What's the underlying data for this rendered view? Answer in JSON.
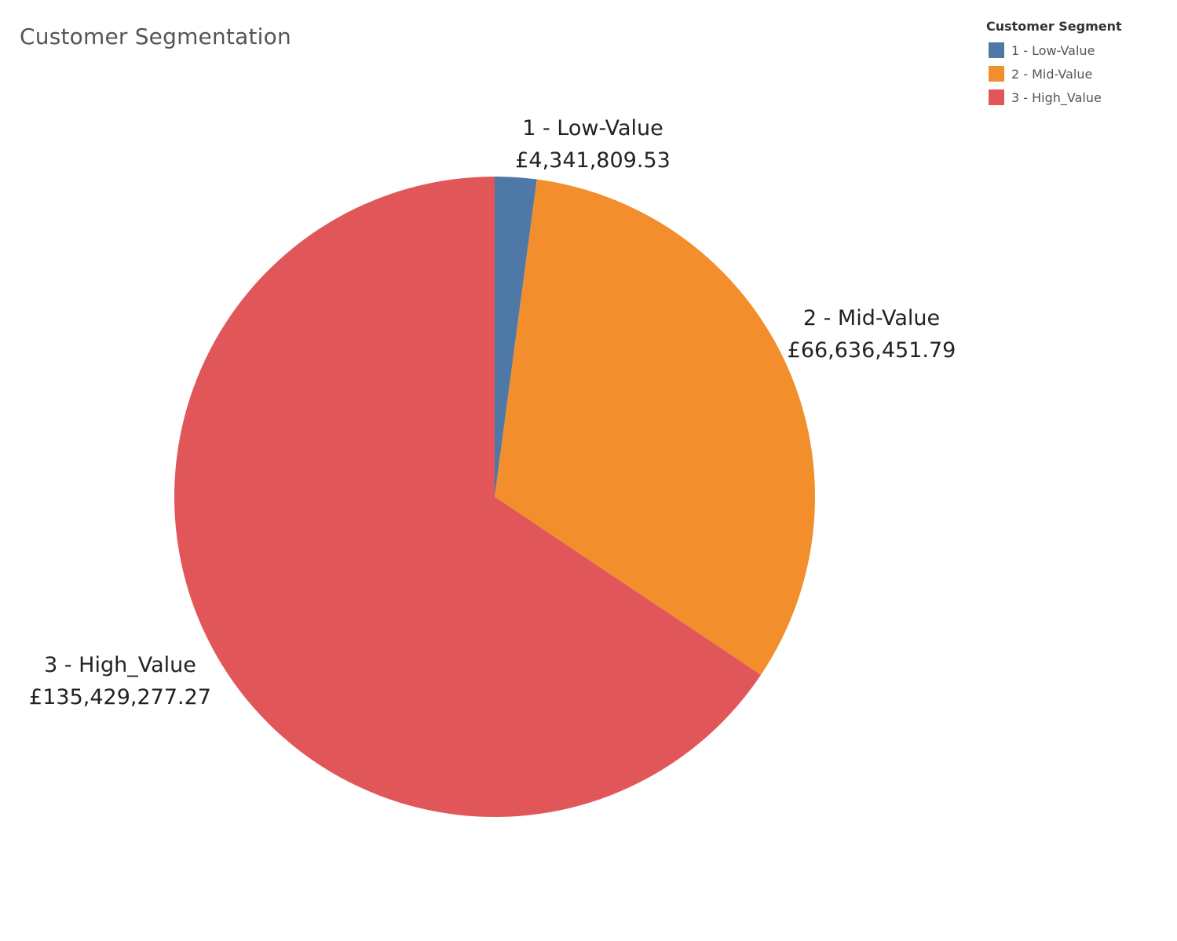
{
  "chart_data": {
    "type": "pie",
    "title": "Customer Segmentation",
    "legend": {
      "title": "Customer Segment",
      "placement": "top-right"
    },
    "slices": [
      {
        "name": "1 - Low-Value",
        "value": 4341809.53,
        "label": "£4,341,809.53",
        "color": "#4e79a7"
      },
      {
        "name": "2 - Mid-Value",
        "value": 66636451.79,
        "label": "£66,636,451.79",
        "color": "#f28e2b"
      },
      {
        "name": "3 - High_Value",
        "value": 135429277.27,
        "label": "£135,429,277.27",
        "color": "#e15759"
      }
    ]
  }
}
